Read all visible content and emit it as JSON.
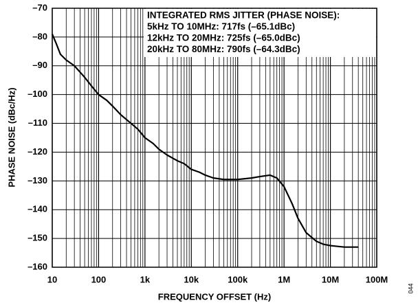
{
  "chart_data": {
    "type": "line",
    "ylabel": "PHASE NOISE (dBc/Hz)",
    "xlabel": "FREQUENCY OFFSET (Hz)",
    "annotations": [
      "INTEGRATED RMS JITTER (PHASE NOISE):",
      "5kHz TO 10MHz: 717fs (–65.1dBc)",
      "12kHz TO 20MHz: 725fs (–65.0dBc)",
      "20kHz TO 80MHz: 790fs (–64.3dBc)"
    ],
    "figure_id": "044",
    "xscale": "log",
    "grid": true,
    "color": "#000000",
    "xlim": [
      10,
      100000000
    ],
    "xticks": [
      10,
      100,
      {
        "value": 1000,
        "label": "1k"
      },
      {
        "value": 10000,
        "label": "10k"
      },
      {
        "value": 100000,
        "label": "100k"
      },
      {
        "value": 1000000,
        "label": "1M"
      },
      {
        "value": 10000000,
        "label": "10M"
      },
      {
        "value": 100000000,
        "label": "100M"
      }
    ],
    "ylim": [
      -160,
      -70
    ],
    "yticks": [
      {
        "value": -70,
        "label": "–70"
      },
      {
        "value": -80,
        "label": "–80"
      },
      {
        "value": -90,
        "label": "–90"
      },
      {
        "value": -100,
        "label": "–100"
      },
      {
        "value": -110,
        "label": "–110"
      },
      {
        "value": -120,
        "label": "–120"
      },
      {
        "value": -130,
        "label": "–130"
      },
      {
        "value": -140,
        "label": "–140"
      },
      {
        "value": -150,
        "label": "–150"
      },
      {
        "value": -160,
        "label": "–160"
      }
    ],
    "x": [
      10,
      12,
      15,
      20,
      30,
      50,
      70,
      100,
      150,
      200,
      300,
      500,
      700,
      1000,
      1500,
      2000,
      3000,
      5000,
      7000,
      10000,
      15000,
      20000,
      30000,
      50000,
      100000,
      200000,
      300000,
      500000,
      700000,
      1000000,
      1500000,
      2000000,
      3000000,
      5000000,
      7000000,
      10000000,
      20000000,
      40000000
    ],
    "values": [
      -79,
      -82,
      -86,
      -88,
      -90,
      -94,
      -97,
      -100,
      -102,
      -104,
      -107,
      -110,
      -112,
      -115,
      -117,
      -119,
      -121,
      -123,
      -124,
      -126,
      -127,
      -128,
      -129,
      -129.5,
      -129.5,
      -129,
      -128.5,
      -128,
      -129,
      -132,
      -138,
      -143,
      -148,
      -151,
      -152,
      -152.5,
      -153,
      -153
    ]
  }
}
